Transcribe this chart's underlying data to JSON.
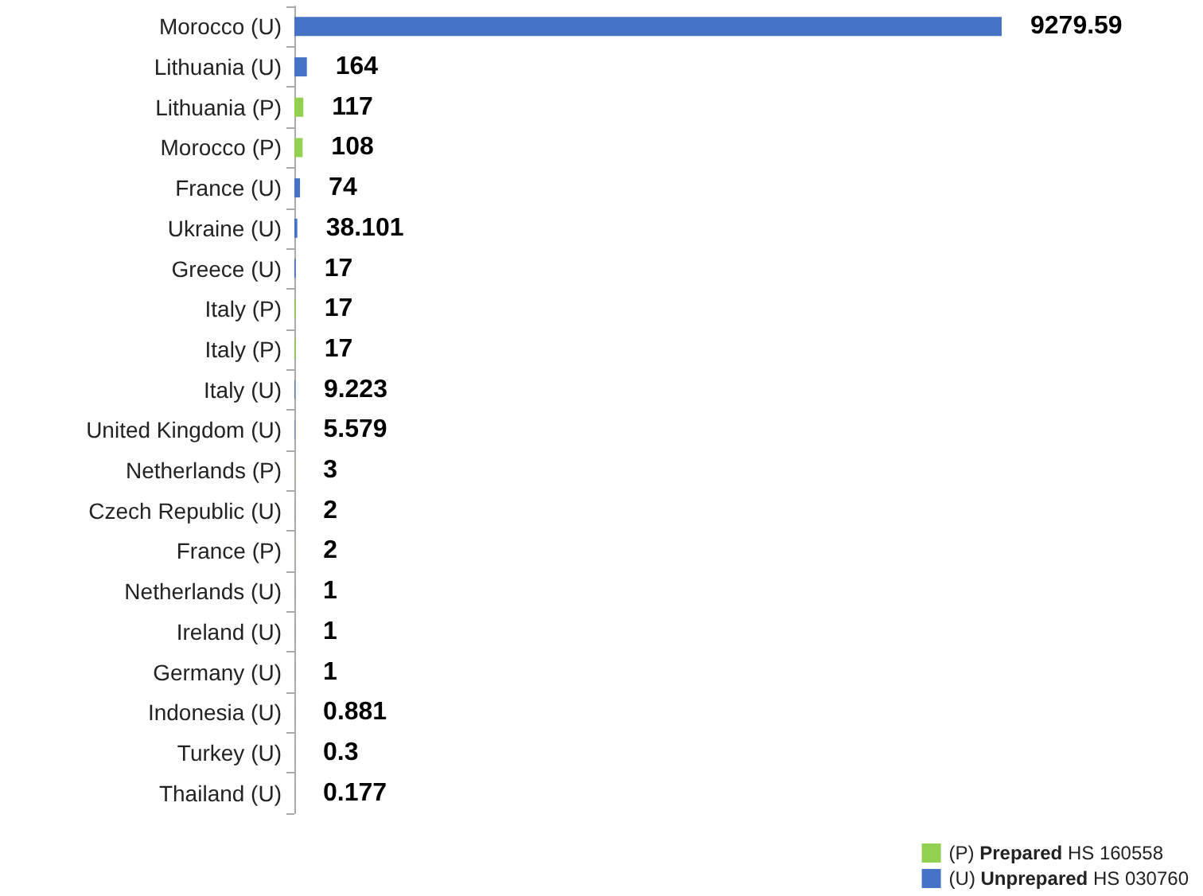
{
  "chart_data": {
    "type": "bar",
    "orientation": "horizontal",
    "stacked": true,
    "data_labels": true,
    "legend": "bottom right",
    "categories": [
      "Morocco (U)",
      "Lithuania (U)",
      "Lithuania (P)",
      "Morocco (P)",
      "France (U)",
      "Ukraine (U)",
      "Greece (U)",
      "Italy (P)",
      "Italy (P)",
      "Italy (U)",
      "United Kingdom (U)",
      "Netherlands (P)",
      "Czech Republic (U)",
      "France (P)",
      "Netherlands (U)",
      "Ireland (U)",
      "Germany (U)",
      "Indonesia (U)",
      "Turkey (U)",
      "Thailand (U)"
    ],
    "series": [
      {
        "name": "(P) Prepared HS 160558",
        "color": "#92d050",
        "values": [
          null,
          null,
          117,
          108,
          null,
          null,
          null,
          17,
          17,
          null,
          null,
          3,
          null,
          2,
          null,
          null,
          null,
          null,
          null,
          null
        ]
      },
      {
        "name": "(U) Unprepared HS 030760",
        "color": "#4472c4",
        "values": [
          9279.59,
          164,
          null,
          null,
          74,
          38.101,
          17,
          null,
          null,
          9.223,
          5.579,
          null,
          2,
          null,
          1,
          1,
          1,
          0.881,
          0.3,
          0.177
        ]
      }
    ]
  }
}
